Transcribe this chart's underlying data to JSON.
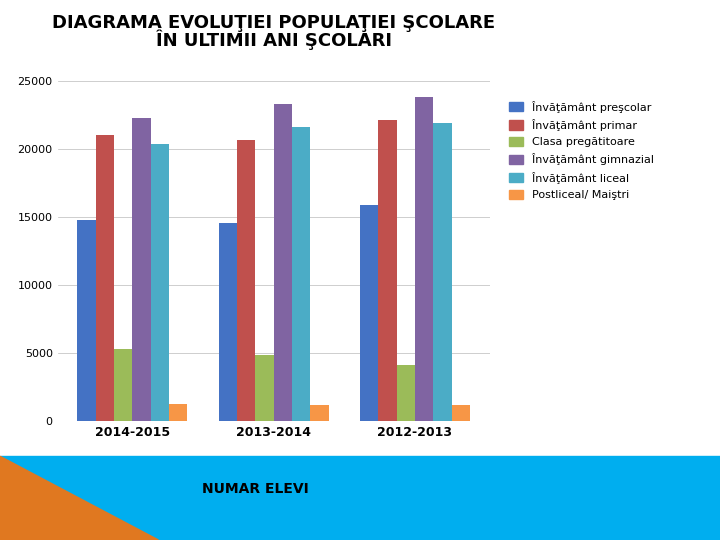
{
  "title_line1": "DIAGRAMA EVOLUŢIEI POPULAŢIEI ŞCOLARE",
  "title_line2": "ÎN ULTIMII ANI ŞCOLARI",
  "categories": [
    "2014-2015",
    "2013-2014",
    "2012-2013"
  ],
  "series": [
    {
      "label": "Învăţământ preşcolar",
      "values": [
        14800,
        14600,
        15900
      ],
      "color": "#4472C4"
    },
    {
      "label": "Învăţământ primar",
      "values": [
        21000,
        20700,
        22100
      ],
      "color": "#C0504D"
    },
    {
      "label": "Clasa pregătitoare",
      "values": [
        5300,
        4900,
        4100
      ],
      "color": "#9BBB59"
    },
    {
      "label": "Învăţământ gimnazial",
      "values": [
        22300,
        23300,
        23800
      ],
      "color": "#8064A2"
    },
    {
      "label": "Învăţământ liceal",
      "values": [
        20400,
        21600,
        21900
      ],
      "color": "#4BACC6"
    },
    {
      "label": "Postliceal/ Maiştri",
      "values": [
        1300,
        1200,
        1200
      ],
      "color": "#F79646"
    }
  ],
  "xlabel": "NUMAR ELEVI",
  "ylim": [
    0,
    25000
  ],
  "yticks": [
    0,
    5000,
    10000,
    15000,
    20000,
    25000
  ],
  "bg_color_orange": "#E07820",
  "bg_color_cyan": "#00AEEF",
  "chart_bg": "#FFFFFF",
  "title_fontsize": 13,
  "axis_fontsize": 8,
  "legend_fontsize": 8,
  "bar_width": 0.13
}
